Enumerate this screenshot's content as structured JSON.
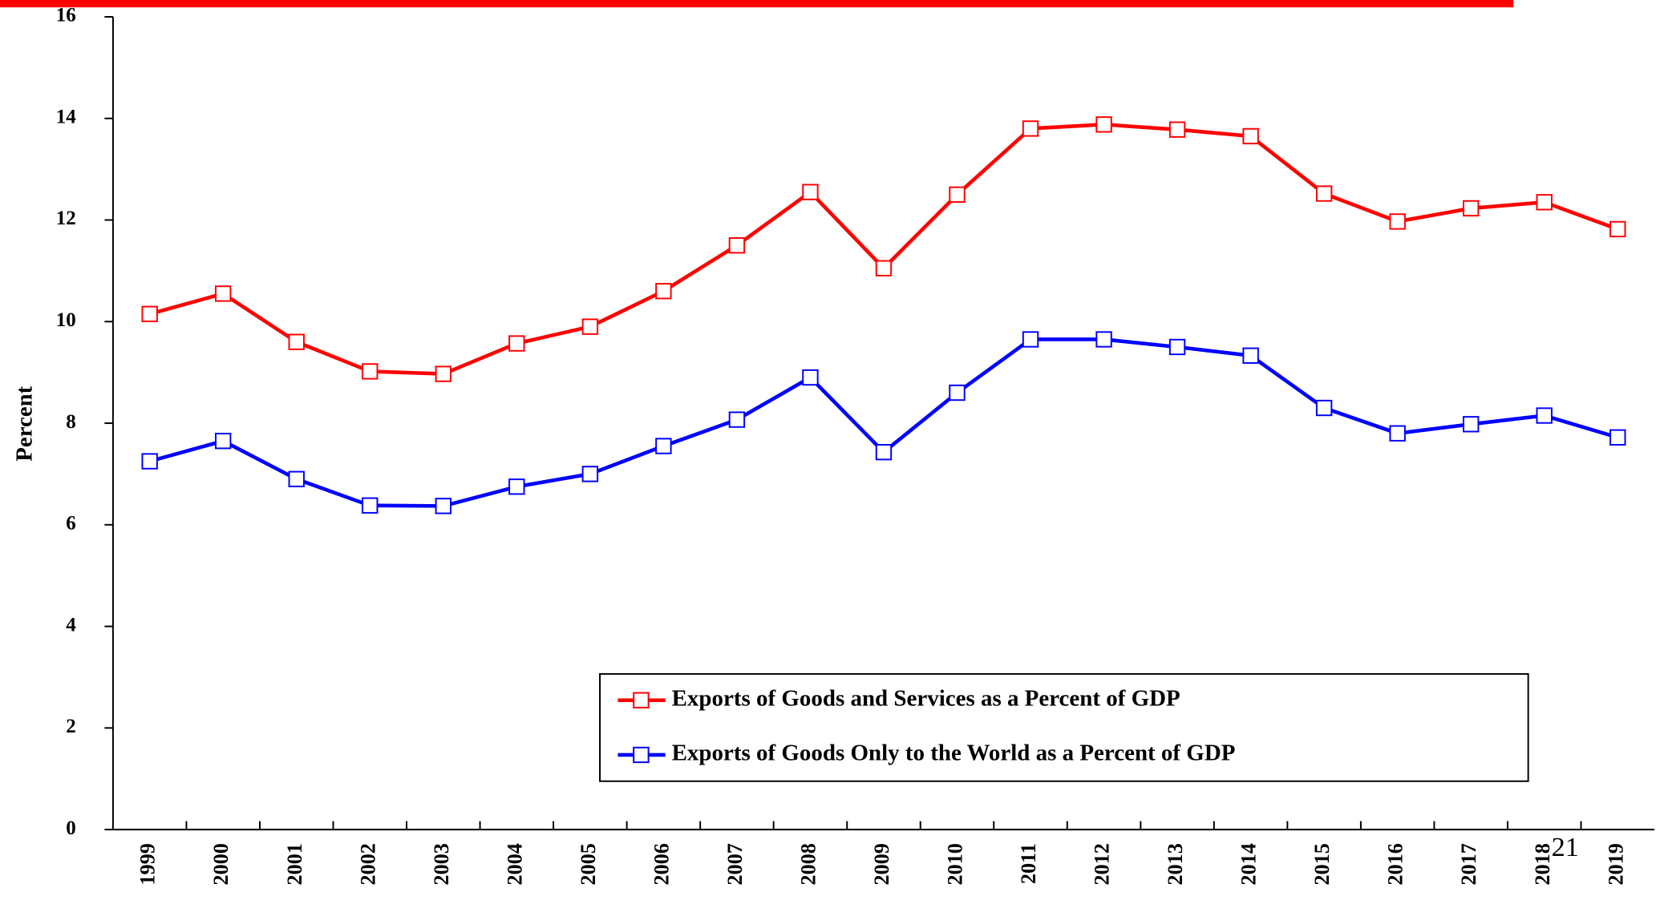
{
  "chart_data": {
    "type": "line",
    "y_label": "Percent",
    "categories": [
      "1999",
      "2000",
      "2001",
      "2002",
      "2003",
      "2004",
      "2005",
      "2006",
      "2007",
      "2008",
      "2009",
      "2010",
      "2011",
      "2012",
      "2013",
      "2014",
      "2015",
      "2016",
      "2017",
      "2018",
      "2019"
    ],
    "series": [
      {
        "name": "Exports of Goods and Services as a Percent of GDP",
        "color": "#ff0000",
        "values": [
          10.15,
          10.55,
          9.6,
          9.02,
          8.97,
          9.57,
          9.9,
          10.6,
          11.5,
          12.55,
          11.05,
          12.5,
          13.8,
          13.88,
          13.78,
          13.65,
          12.52,
          11.97,
          12.23,
          12.35,
          11.82
        ]
      },
      {
        "name": "Exports of Goods Only to the World as a Percent of GDP",
        "color": "#0000ff",
        "values": [
          7.25,
          7.65,
          6.9,
          6.38,
          6.37,
          6.75,
          7.0,
          7.55,
          8.07,
          8.9,
          7.43,
          8.6,
          9.65,
          9.65,
          9.5,
          9.33,
          8.3,
          7.8,
          7.98,
          8.15,
          7.72
        ]
      }
    ],
    "ylim": [
      0,
      16
    ],
    "yticks": [
      0,
      2,
      4,
      6,
      8,
      10,
      12,
      14,
      16
    ],
    "legend": "lower right"
  },
  "page_number": "21"
}
